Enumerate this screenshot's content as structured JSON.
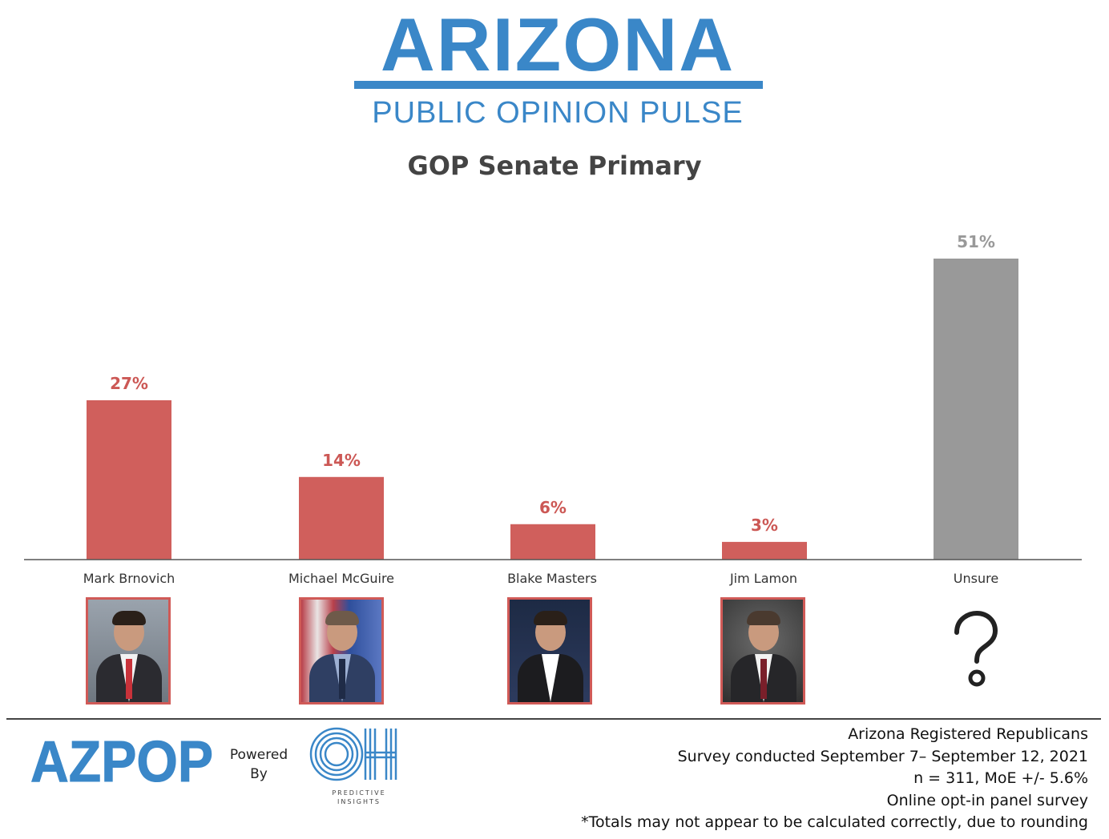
{
  "brand": {
    "title": "ARIZONA",
    "subtitle": "PUBLIC OPINION PULSE",
    "color": "#3a87c8"
  },
  "chart_data": {
    "type": "bar",
    "title": "GOP Senate Primary",
    "categories": [
      "Mark Brnovich",
      "Michael McGuire",
      "Blake Masters",
      "Jim Lamon",
      "Unsure"
    ],
    "values": [
      27,
      14,
      6,
      3,
      51
    ],
    "value_labels": [
      "27%",
      "14%",
      "6%",
      "3%",
      "51%"
    ],
    "colors": [
      "#d05f5c",
      "#d05f5c",
      "#d05f5c",
      "#d05f5c",
      "#999999"
    ],
    "label_colors": [
      "#cc5855",
      "#cc5855",
      "#cc5855",
      "#cc5855",
      "#999999"
    ],
    "ylim": [
      0,
      51
    ],
    "grid": false,
    "legend": "none"
  },
  "candidates": {
    "brnovich": "Mark Brnovich",
    "mcguire": "Michael McGuire",
    "masters": "Blake Masters",
    "lamon": "Jim Lamon",
    "unsure": "Unsure"
  },
  "footer": {
    "azpop_logo": "AZPOP",
    "powered_by": "Powered By",
    "oh_logo": "OH",
    "oh_caption": "PREDICTIVE INSIGHTS",
    "notes": [
      "Arizona Registered Republicans",
      "Survey conducted September 7–  September 12, 2021",
      "n = 311, MoE +/- 5.6%",
      "Online opt-in panel survey",
      "*Totals may not appear to be calculated correctly, due to rounding"
    ]
  }
}
